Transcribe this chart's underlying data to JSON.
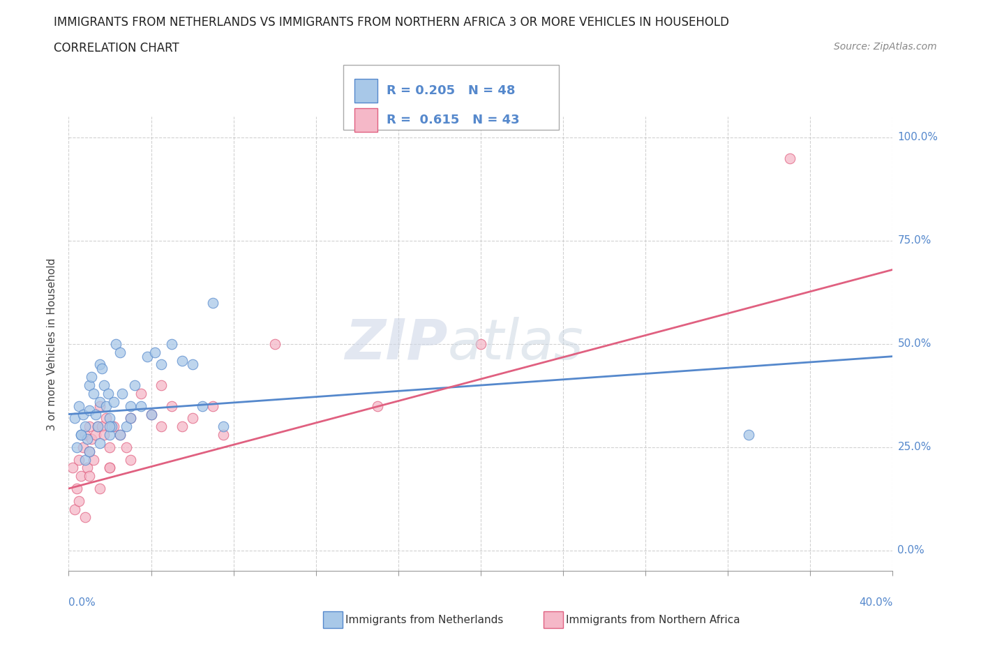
{
  "title": "IMMIGRANTS FROM NETHERLANDS VS IMMIGRANTS FROM NORTHERN AFRICA 3 OR MORE VEHICLES IN HOUSEHOLD",
  "subtitle": "CORRELATION CHART",
  "source": "Source: ZipAtlas.com",
  "ylabel_label": "3 or more Vehicles in Household",
  "yticks": [
    0.0,
    25.0,
    50.0,
    75.0,
    100.0
  ],
  "xticks": [
    0.0,
    4.0,
    8.0,
    12.0,
    16.0,
    20.0,
    24.0,
    28.0,
    32.0,
    36.0,
    40.0
  ],
  "xlim": [
    0.0,
    40.0
  ],
  "ylim": [
    -5.0,
    105.0
  ],
  "blue_R": 0.205,
  "blue_N": 48,
  "pink_R": 0.615,
  "pink_N": 43,
  "blue_color": "#a8c8e8",
  "pink_color": "#f5b8c8",
  "blue_line_color": "#5588cc",
  "pink_line_color": "#e06080",
  "watermark_zip": "ZIP",
  "watermark_atlas": "atlas",
  "legend_label_blue": "Immigrants from Netherlands",
  "legend_label_pink": "Immigrants from Northern Africa",
  "blue_scatter_x": [
    0.3,
    0.5,
    0.6,
    0.7,
    0.8,
    0.9,
    1.0,
    1.0,
    1.1,
    1.2,
    1.3,
    1.4,
    1.5,
    1.5,
    1.6,
    1.7,
    1.8,
    1.9,
    2.0,
    2.0,
    2.1,
    2.2,
    2.3,
    2.5,
    2.6,
    2.8,
    3.0,
    3.2,
    3.5,
    3.8,
    4.2,
    4.5,
    5.0,
    5.5,
    6.0,
    6.5,
    7.0,
    7.5,
    0.4,
    0.6,
    0.8,
    1.0,
    1.5,
    2.0,
    2.5,
    3.0,
    4.0,
    33.0
  ],
  "blue_scatter_y": [
    32,
    35,
    28,
    33,
    30,
    27,
    40,
    34,
    42,
    38,
    33,
    30,
    45,
    36,
    44,
    40,
    35,
    38,
    32,
    28,
    30,
    36,
    50,
    48,
    38,
    30,
    35,
    40,
    35,
    47,
    48,
    45,
    50,
    46,
    45,
    35,
    60,
    30,
    25,
    28,
    22,
    24,
    26,
    30,
    28,
    32,
    33,
    28
  ],
  "pink_scatter_x": [
    0.2,
    0.4,
    0.5,
    0.6,
    0.7,
    0.8,
    0.9,
    1.0,
    1.0,
    1.1,
    1.2,
    1.3,
    1.4,
    1.5,
    1.6,
    1.7,
    1.8,
    2.0,
    2.0,
    2.2,
    2.5,
    2.8,
    3.0,
    3.5,
    4.0,
    4.5,
    5.0,
    5.5,
    6.0,
    7.0,
    0.3,
    0.5,
    0.8,
    1.0,
    1.5,
    2.0,
    3.0,
    4.5,
    7.5,
    10.0,
    15.0,
    20.0,
    35.0
  ],
  "pink_scatter_y": [
    20,
    15,
    22,
    18,
    25,
    28,
    20,
    30,
    24,
    27,
    22,
    28,
    30,
    35,
    30,
    28,
    32,
    25,
    20,
    30,
    28,
    25,
    32,
    38,
    33,
    40,
    35,
    30,
    32,
    35,
    10,
    12,
    8,
    18,
    15,
    20,
    22,
    30,
    28,
    50,
    35,
    50,
    95
  ],
  "blue_trend_x": [
    0.0,
    40.0
  ],
  "blue_trend_y": [
    33.0,
    47.0
  ],
  "pink_trend_x": [
    0.0,
    40.0
  ],
  "pink_trend_y": [
    15.0,
    68.0
  ]
}
